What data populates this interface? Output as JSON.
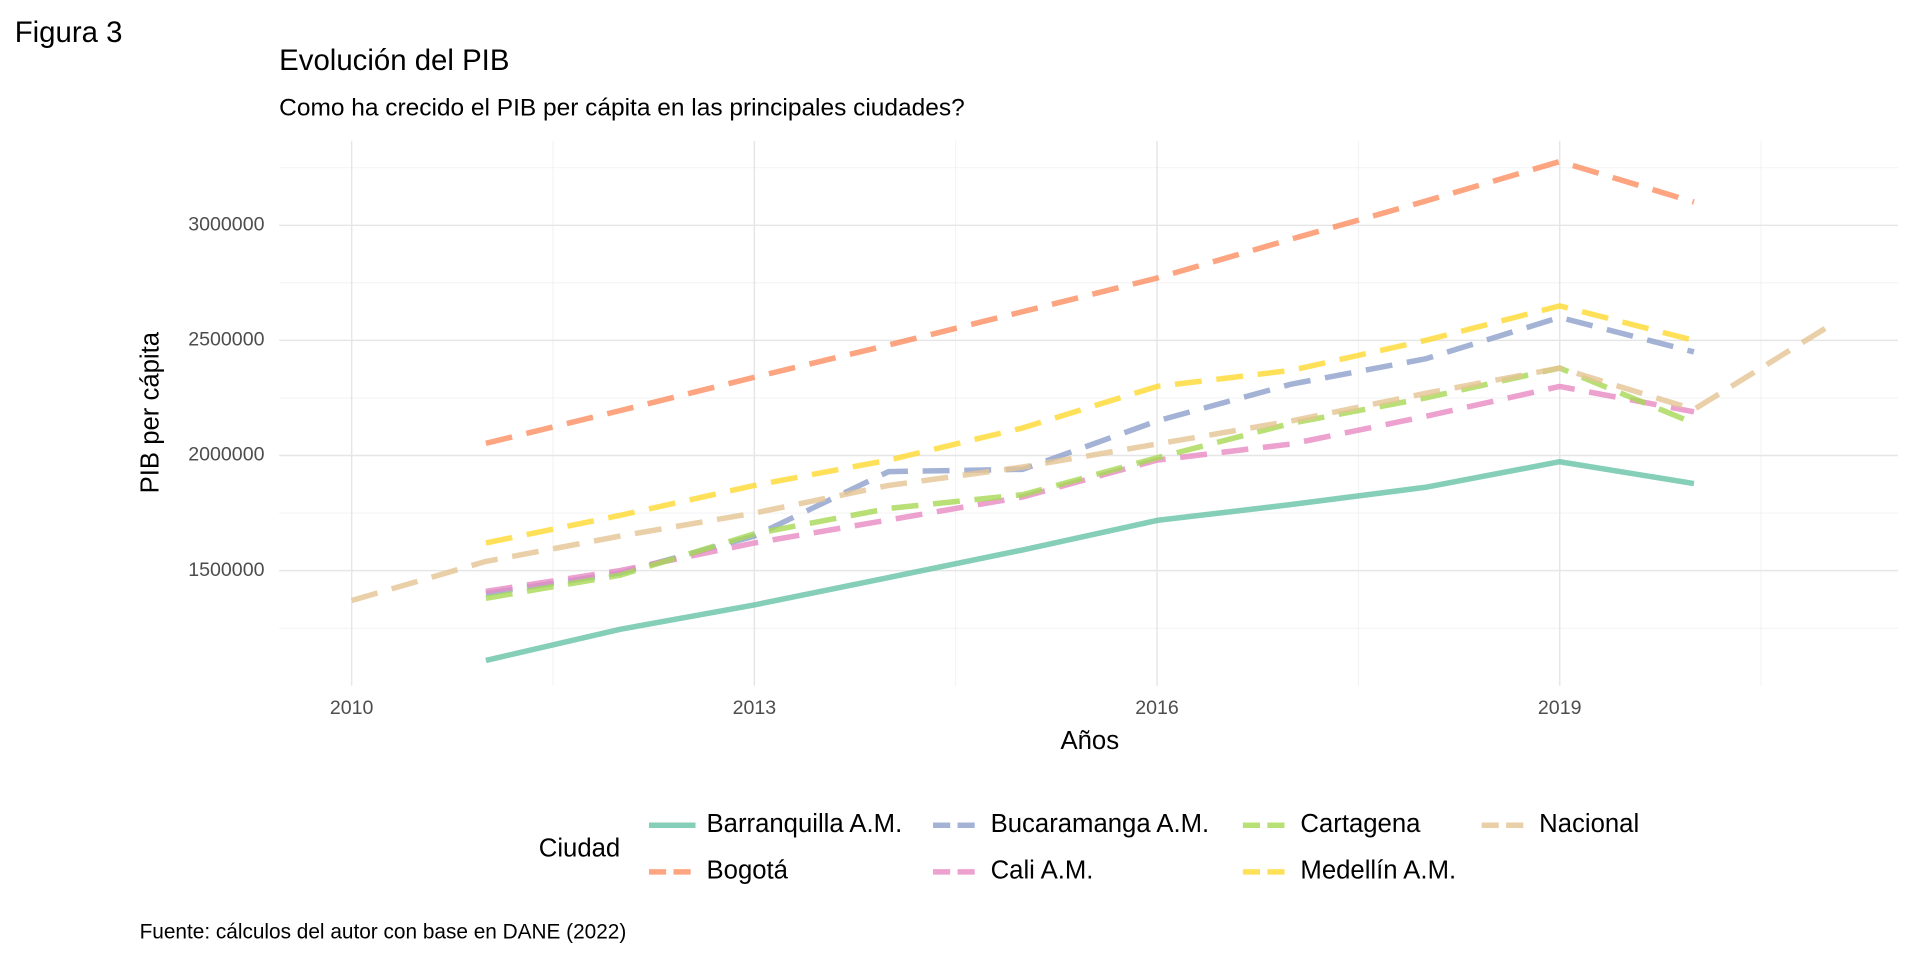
{
  "figure_label": "Figura 3",
  "caption": "Fuente: cálculos del autor con base en DANE (2022)",
  "chart_data": {
    "type": "line",
    "title": "Evolución del PIB",
    "subtitle": "Como ha crecido el PIB per cápita en las principales ciudades?",
    "x_label": "Años",
    "y_label": "PIB per cápita",
    "legend_title": "Ciudad",
    "legend_position": "bottom",
    "grid": true,
    "x": [
      2010,
      2011,
      2012,
      2013,
      2014,
      2015,
      2016,
      2017,
      2018,
      2019,
      2020,
      2021
    ],
    "xlim": [
      2009.46,
      2021.52
    ],
    "xticks": [
      2010,
      2013,
      2016,
      2019
    ],
    "x_minor_grid": [
      2011.5,
      2014.5,
      2017.5,
      2020.5
    ],
    "ylim": [
      1000000,
      3367000
    ],
    "yticks": [
      1500000,
      2000000,
      2500000,
      3000000
    ],
    "y_minor_grid": [
      1250000,
      1750000,
      2250000,
      2750000,
      3250000
    ],
    "series": [
      {
        "name": "Barranquilla A.M.",
        "color": "#66c2a5",
        "line_style": "solid",
        "values": [
          null,
          1110000,
          1245000,
          1351000,
          1470000,
          1590000,
          1718000,
          1787000,
          1862000,
          1973000,
          1878000,
          null
        ]
      },
      {
        "name": "Bogotá",
        "color": "#fc8d62",
        "line_style": "dashed",
        "values": [
          null,
          2053000,
          2195000,
          2340000,
          2480000,
          2625000,
          2771000,
          2940000,
          3105000,
          3277000,
          3101000,
          null
        ]
      },
      {
        "name": "Bucaramanga A.M.",
        "color": "#8da0cb",
        "line_style": "dashed",
        "values": [
          null,
          1400000,
          1490000,
          1650000,
          1930000,
          1940000,
          2150000,
          2310000,
          2420000,
          2600000,
          2450000,
          null
        ]
      },
      {
        "name": "Cali A.M.",
        "color": "#e78ac3",
        "line_style": "dashed",
        "values": [
          null,
          1410000,
          1500000,
          1620000,
          1720000,
          1820000,
          1980000,
          2050000,
          2170000,
          2300000,
          2190000,
          null
        ]
      },
      {
        "name": "Cartagena",
        "color": "#a6d854",
        "line_style": "dashed",
        "values": [
          null,
          1380000,
          1480000,
          1660000,
          1770000,
          1830000,
          1990000,
          2140000,
          2250000,
          2380000,
          2140000,
          null
        ]
      },
      {
        "name": "Medellín A.M.",
        "color": "#ffd92f",
        "line_style": "dashed",
        "values": [
          null,
          1620000,
          1740000,
          1870000,
          1980000,
          2120000,
          2300000,
          2370000,
          2500000,
          2650000,
          2500000,
          null
        ]
      },
      {
        "name": "Nacional",
        "color": "#e5c494",
        "line_style": "dashed",
        "values": [
          1370000,
          1540000,
          1650000,
          1750000,
          1870000,
          1950000,
          2050000,
          2150000,
          2270000,
          2380000,
          2200000,
          2560000
        ]
      }
    ]
  }
}
